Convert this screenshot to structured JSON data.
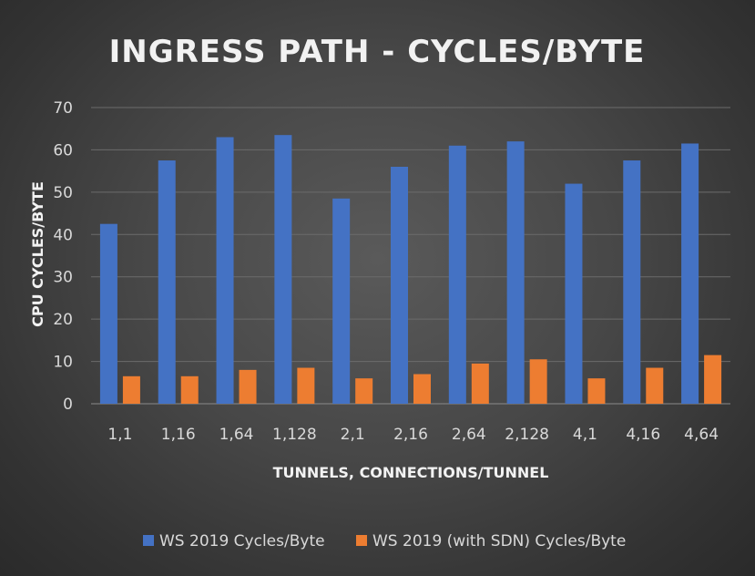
{
  "chart_data": {
    "type": "bar",
    "title": "INGRESS PATH - CYCLES/BYTE",
    "xlabel": "TUNNELS, CONNECTIONS/TUNNEL",
    "ylabel": "CPU CYCLES/BYTE",
    "ylim": [
      0,
      70
    ],
    "yticks": [
      0,
      10,
      20,
      30,
      40,
      50,
      60,
      70
    ],
    "grid": true,
    "legend_position": "bottom",
    "categories": [
      "1,1",
      "1,16",
      "1,64",
      "1,128",
      "2,1",
      "2,16",
      "2,64",
      "2,128",
      "4,1",
      "4,16",
      "4,64"
    ],
    "series": [
      {
        "name": "WS 2019 Cycles/Byte",
        "color": "#4472c4",
        "values": [
          42.5,
          57.5,
          63,
          63.5,
          48.5,
          56,
          61,
          62,
          52,
          57.5,
          61.5
        ]
      },
      {
        "name": "WS 2019 (with SDN) Cycles/Byte",
        "color": "#ed7d31",
        "values": [
          6.5,
          6.5,
          8,
          8.5,
          6,
          7,
          9.5,
          10.5,
          6,
          8.5,
          11.5
        ]
      }
    ]
  }
}
